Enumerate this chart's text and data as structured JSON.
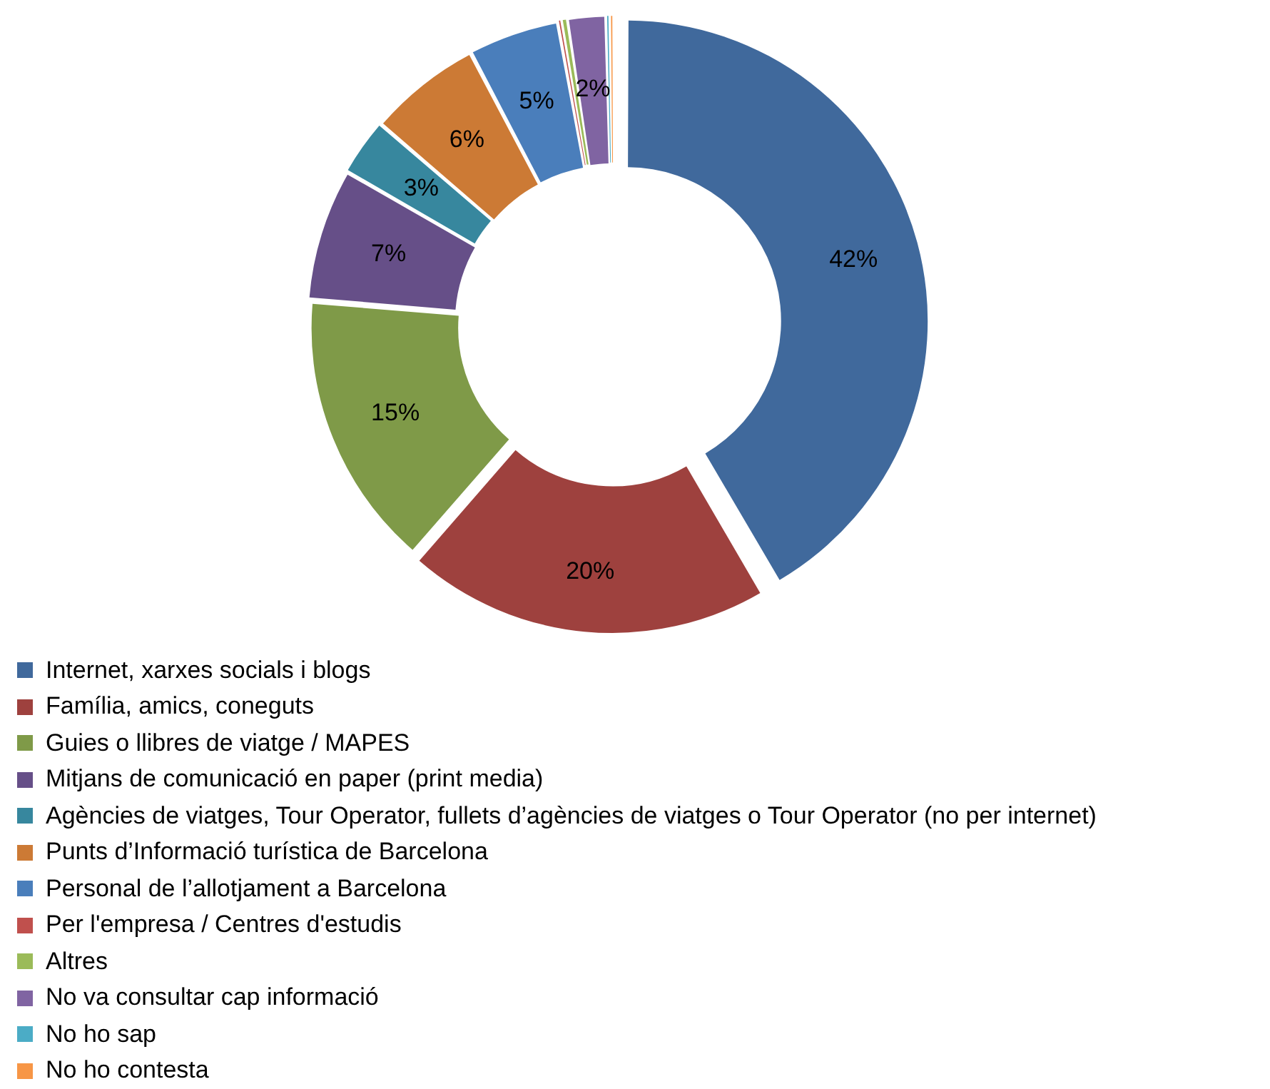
{
  "chart_data": {
    "type": "donut",
    "categories": [
      "Internet, xarxes socials i blogs",
      "Família, amics, coneguts",
      "Guies o llibres de viatge / MAPES",
      "Mitjans de comunicació en paper (print media)",
      "Agències de viatges, Tour Operator, fullets d’agències de viatges o Tour Operator (no per internet)",
      "Punts d’Informació turística de Barcelona",
      "Personal de l’allotjament a Barcelona",
      "Per l'empresa / Centres d'estudis",
      "Altres",
      "No va consultar cap informació",
      "No ho sap",
      "No ho contesta"
    ],
    "values": [
      41.6,
      19.8,
      14.9,
      7,
      3,
      6,
      4.8,
      0.2,
      0.3,
      2,
      0.2,
      0.2
    ],
    "value_labels": [
      "42%",
      "20%",
      "15%",
      "7%",
      "3%",
      "6%",
      "5%",
      null,
      null,
      "2%",
      null,
      null
    ],
    "colors": [
      "#40699c",
      "#9e413e",
      "#7f9a48",
      "#664f88",
      "#37879e",
      "#cc7a35",
      "#4a7ebb",
      "#c0504d",
      "#9bbb59",
      "#8064a2",
      "#4bacc6",
      "#f79646"
    ],
    "legend": "bottom"
  }
}
